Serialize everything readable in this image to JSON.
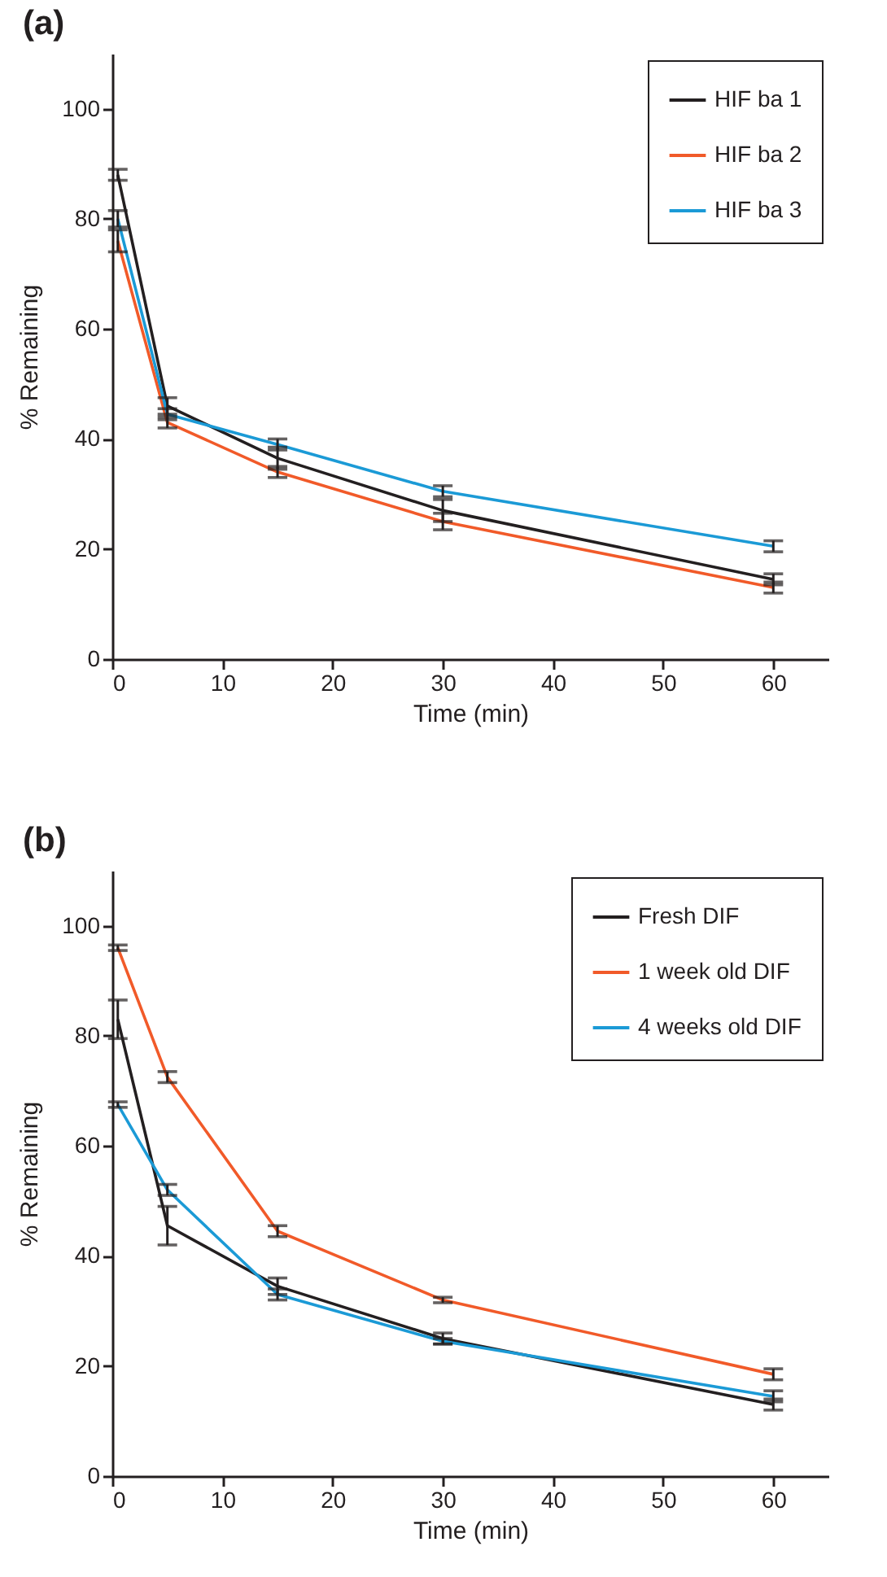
{
  "chart_data": [
    {
      "type": "line",
      "title": "(a)",
      "xlabel": "Time (min)",
      "ylabel": "% Remaining",
      "x": [
        0.5,
        5,
        15,
        30,
        60
      ],
      "xlim": [
        0,
        65
      ],
      "xticks": [
        0,
        10,
        20,
        30,
        40,
        50,
        60
      ],
      "ylim": [
        0,
        110
      ],
      "yticks": [
        0,
        20,
        40,
        60,
        80,
        100
      ],
      "legend": "top right",
      "grid": false,
      "marker": "none",
      "line_style": "solid",
      "series": [
        {
          "name": "HIF ba 1",
          "color": "#231f20",
          "values": [
            88,
            46,
            36.5,
            27,
            14.5
          ],
          "errors": [
            1,
            1.5,
            2,
            2,
            1
          ]
        },
        {
          "name": "HIF ba 2",
          "color": "#f15a29",
          "values": [
            76,
            43,
            34,
            25,
            13
          ],
          "errors": [
            2,
            1,
            1,
            1.5,
            1
          ]
        },
        {
          "name": "HIF ba 3",
          "color": "#1b9ad6",
          "values": [
            80,
            44.5,
            39,
            30.5,
            20.5
          ],
          "errors": [
            1.5,
            1,
            1,
            1,
            1
          ]
        }
      ]
    },
    {
      "type": "line",
      "title": "(b)",
      "xlabel": "Time (min)",
      "ylabel": "% Remaining",
      "x": [
        0.5,
        5,
        15,
        30,
        60
      ],
      "xlim": [
        0,
        65
      ],
      "xticks": [
        0,
        10,
        20,
        30,
        40,
        50,
        60
      ],
      "ylim": [
        0,
        110
      ],
      "yticks": [
        0,
        20,
        40,
        60,
        80,
        100
      ],
      "legend": "top right",
      "grid": false,
      "marker": "none",
      "line_style": "solid",
      "series": [
        {
          "name": "Fresh DIF",
          "color": "#231f20",
          "values": [
            83,
            45.5,
            34.5,
            25,
            13
          ],
          "errors": [
            3.5,
            3.5,
            1.5,
            1,
            1
          ]
        },
        {
          "name": "1 week old DIF",
          "color": "#f15a29",
          "values": [
            96,
            72.5,
            44.5,
            32,
            18.5
          ],
          "errors": [
            0.5,
            1,
            1,
            0.5,
            1
          ]
        },
        {
          "name": "4 weeks old DIF",
          "color": "#1b9ad6",
          "values": [
            67.5,
            52,
            33,
            24.5,
            14.5
          ],
          "errors": [
            0.5,
            1,
            1,
            0.5,
            1
          ]
        }
      ]
    }
  ]
}
